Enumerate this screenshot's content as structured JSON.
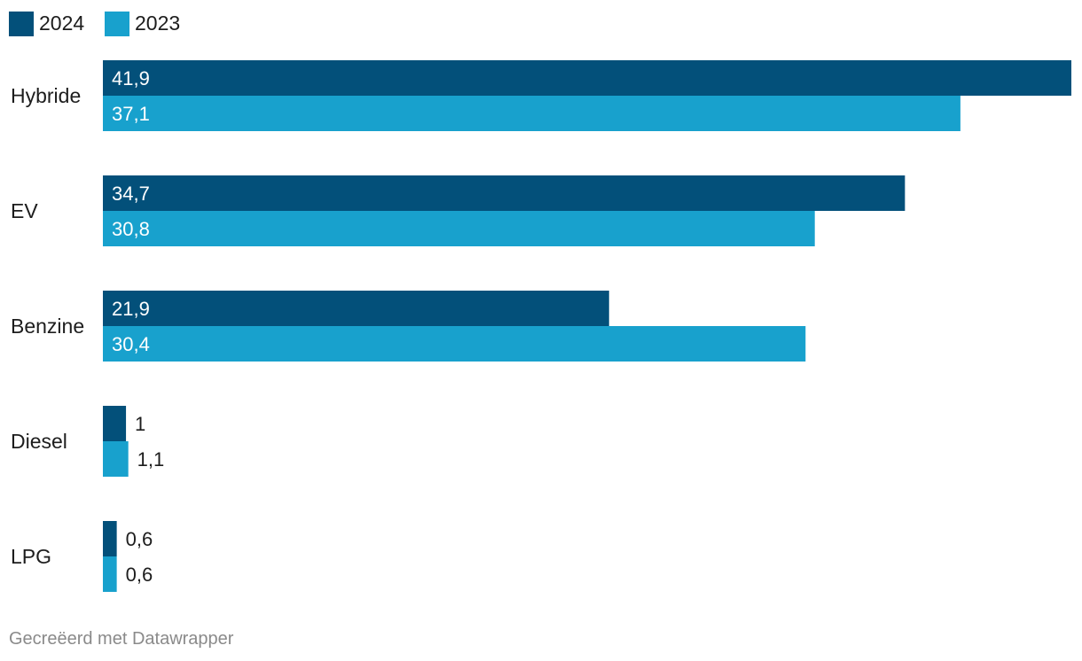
{
  "chart_data": {
    "type": "bar",
    "orientation": "horizontal",
    "categories": [
      "Hybride",
      "EV",
      "Benzine",
      "Diesel",
      "LPG"
    ],
    "series": [
      {
        "name": "2024",
        "color": "#03507a",
        "values": [
          41.9,
          34.7,
          21.9,
          1.0,
          0.6
        ],
        "labels": [
          "41,9",
          "34,7",
          "21,9",
          "1",
          "0,6"
        ]
      },
      {
        "name": "2023",
        "color": "#18a1cd",
        "values": [
          37.1,
          30.8,
          30.4,
          1.1,
          0.6
        ],
        "labels": [
          "37,1",
          "30,8",
          "30,4",
          "1,1",
          "0,6"
        ]
      }
    ],
    "xlim": [
      0,
      41.9
    ],
    "legend_position": "top-left",
    "grid": false,
    "title": "",
    "xlabel": "",
    "ylabel": ""
  },
  "footer": {
    "credit": "Gecreëerd met Datawrapper"
  }
}
